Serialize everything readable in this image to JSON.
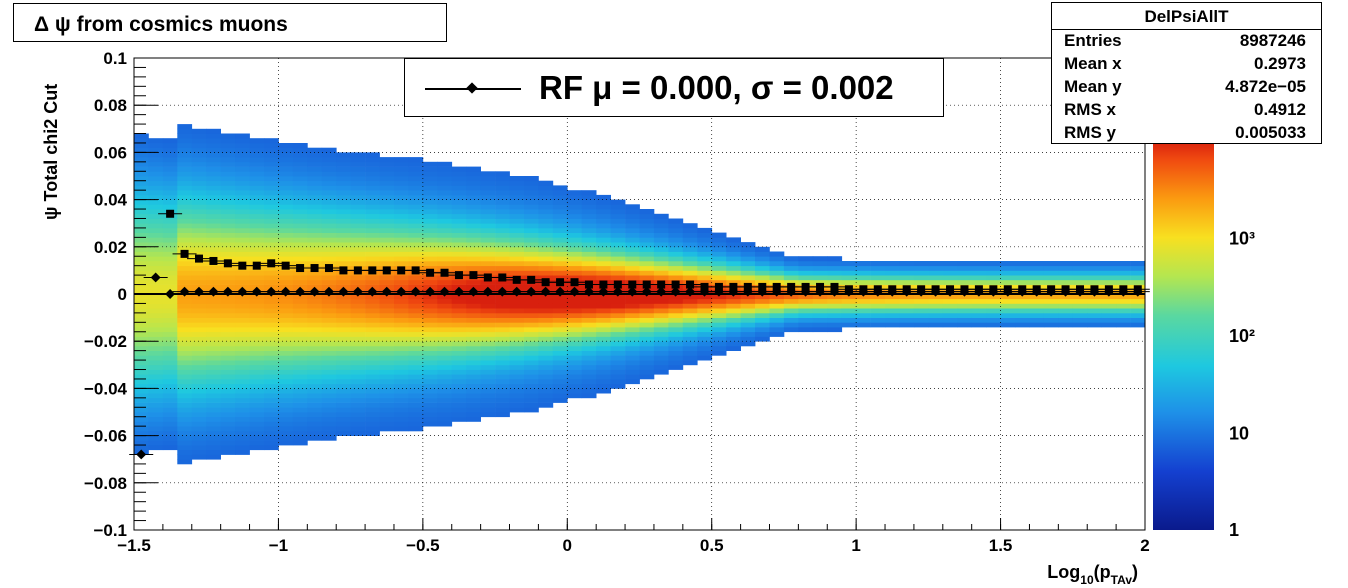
{
  "title": "Δ ψ from cosmics muons",
  "stats": {
    "name": "DelPsiAllT",
    "rows": [
      {
        "label": "Entries",
        "value": "8987246"
      },
      {
        "label": "Mean x",
        "value": "0.2973"
      },
      {
        "label": "Mean y",
        "value": "4.872e−05"
      },
      {
        "label": "RMS x",
        "value": "0.4912"
      },
      {
        "label": "RMS y",
        "value": "0.005033"
      }
    ]
  },
  "legend": {
    "entry": "RF μ =  0.000, σ =   0.002"
  },
  "chart_data": {
    "type": "heatmap",
    "xlabel": "Log10(pTAv)",
    "ylabel": "ψ  Total chi2 Cut",
    "xlim": [
      -1.5,
      2
    ],
    "ylim": [
      -0.1,
      0.1
    ],
    "x_ticks": [
      -1.5,
      -1,
      -0.5,
      0,
      0.5,
      1,
      1.5,
      2
    ],
    "x_tick_labels": [
      "−1.5",
      "−1",
      "−0.5",
      "0",
      "0.5",
      "1",
      "1.5",
      "2"
    ],
    "y_ticks": [
      -0.1,
      -0.08,
      -0.06,
      -0.04,
      -0.02,
      0,
      0.02,
      0.04,
      0.06,
      0.08,
      0.1
    ],
    "y_tick_labels": [
      "−0.1",
      "−0.08",
      "−0.06",
      "−0.04",
      "−0.02",
      "0",
      "0.02",
      "0.04",
      "0.06",
      "0.08",
      "0.1"
    ],
    "grid": true,
    "colorbar": {
      "scale": "log",
      "range": [
        1,
        10000
      ],
      "tick_labels": [
        "1",
        "10",
        "10²",
        "10³"
      ]
    },
    "series": [
      {
        "marker": "diamond",
        "x": [
          -1.475,
          -1.425,
          -1.375,
          -1.325,
          -1.275,
          -1.225,
          -1.175,
          -1.125,
          -1.075,
          -1.025,
          -0.975,
          -0.925,
          -0.875,
          -0.825,
          -0.775,
          -0.725,
          -0.675,
          -0.625,
          -0.575,
          -0.525,
          -0.475,
          -0.425,
          -0.375,
          -0.325,
          -0.275,
          -0.225,
          -0.175,
          -0.125,
          -0.075,
          -0.025,
          0.025,
          0.075,
          0.125,
          0.175,
          0.225,
          0.275,
          0.325,
          0.375,
          0.425,
          0.475,
          0.525,
          0.575,
          0.625,
          0.675,
          0.725,
          0.775,
          0.825,
          0.875,
          0.925,
          0.975,
          1.025,
          1.075,
          1.125,
          1.175,
          1.225,
          1.275,
          1.325,
          1.375,
          1.425,
          1.475,
          1.525,
          1.575,
          1.625,
          1.675,
          1.725,
          1.775,
          1.825,
          1.875,
          1.925,
          1.975
        ],
        "y": [
          -0.068,
          0.007,
          0.0,
          0.001,
          0.001,
          0.001,
          0.001,
          0.001,
          0.001,
          0.001,
          0.001,
          0.001,
          0.001,
          0.001,
          0.001,
          0.001,
          0.001,
          0.001,
          0.001,
          0.001,
          0.001,
          0.001,
          0.001,
          0.001,
          0.001,
          0.001,
          0.001,
          0.001,
          0.001,
          0.001,
          0.001,
          0.001,
          0.001,
          0.001,
          0.001,
          0.001,
          0.001,
          0.001,
          0.001,
          0.001,
          0.001,
          0.001,
          0.001,
          0.001,
          0.001,
          0.001,
          0.001,
          0.001,
          0.001,
          0.001,
          0.001,
          0.001,
          0.001,
          0.001,
          0.001,
          0.001,
          0.001,
          0.001,
          0.001,
          0.001,
          0.001,
          0.001,
          0.001,
          0.001,
          0.001,
          0.001,
          0.001,
          0.001,
          0.001,
          0.001
        ]
      },
      {
        "marker": "square",
        "x": [
          -1.375,
          -1.325,
          -1.275,
          -1.225,
          -1.175,
          -1.125,
          -1.075,
          -1.025,
          -0.975,
          -0.925,
          -0.875,
          -0.825,
          -0.775,
          -0.725,
          -0.675,
          -0.625,
          -0.575,
          -0.525,
          -0.475,
          -0.425,
          -0.375,
          -0.325,
          -0.275,
          -0.225,
          -0.175,
          -0.125,
          -0.075,
          -0.025,
          0.025,
          0.075,
          0.125,
          0.175,
          0.225,
          0.275,
          0.325,
          0.375,
          0.425,
          0.475,
          0.525,
          0.575,
          0.625,
          0.675,
          0.725,
          0.775,
          0.825,
          0.875,
          0.925,
          0.975,
          1.025,
          1.075,
          1.125,
          1.175,
          1.225,
          1.275,
          1.325,
          1.375,
          1.425,
          1.475,
          1.525,
          1.575,
          1.625,
          1.675,
          1.725,
          1.775,
          1.825,
          1.875,
          1.925,
          1.975
        ],
        "y": [
          0.034,
          0.017,
          0.015,
          0.014,
          0.013,
          0.012,
          0.012,
          0.013,
          0.012,
          0.011,
          0.011,
          0.011,
          0.01,
          0.01,
          0.01,
          0.01,
          0.01,
          0.01,
          0.009,
          0.009,
          0.008,
          0.008,
          0.007,
          0.007,
          0.006,
          0.006,
          0.005,
          0.005,
          0.005,
          0.004,
          0.004,
          0.004,
          0.004,
          0.004,
          0.004,
          0.004,
          0.004,
          0.003,
          0.003,
          0.003,
          0.003,
          0.003,
          0.003,
          0.003,
          0.003,
          0.003,
          0.003,
          0.002,
          0.002,
          0.002,
          0.002,
          0.002,
          0.002,
          0.002,
          0.002,
          0.002,
          0.002,
          0.002,
          0.002,
          0.002,
          0.002,
          0.002,
          0.002,
          0.002,
          0.002,
          0.002,
          0.002,
          0.002
        ]
      }
    ],
    "fit_line": {
      "y": 0.0
    }
  }
}
